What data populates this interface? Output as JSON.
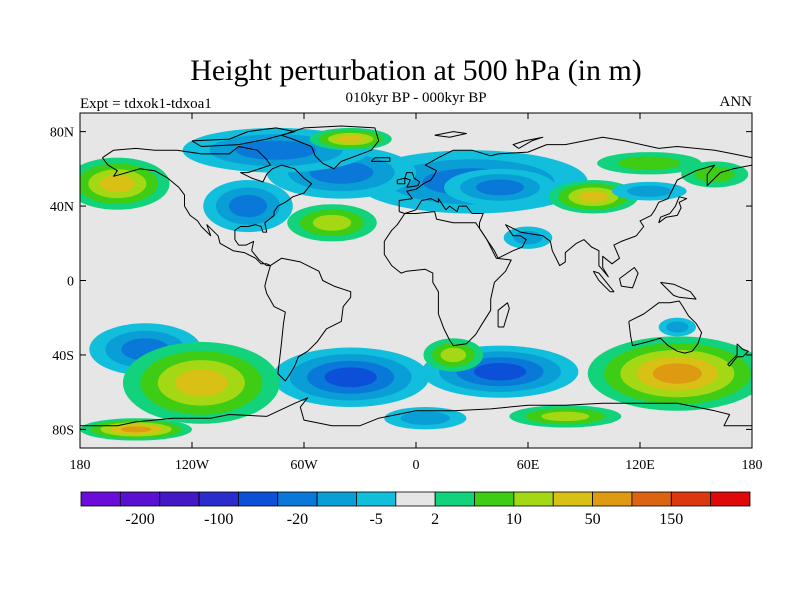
{
  "title": "Height perturbation at 500 hPa (in m)",
  "subtitle": "010kyr BP - 000kyr BP",
  "left_label": "Expt = tdxok1-tdxoa1",
  "right_label": "ANN",
  "colors": {
    "background": "#e6e6e6",
    "coast": "#000000"
  },
  "chart_data": {
    "type": "heatmap",
    "variable": "Height perturbation at 500 hPa",
    "units": "m",
    "xlim": [
      -180,
      180
    ],
    "ylim": [
      -90,
      90
    ],
    "lat_ticks": [
      {
        "value": 80,
        "label": "80N"
      },
      {
        "value": 40,
        "label": "40N"
      },
      {
        "value": 0,
        "label": "0"
      },
      {
        "value": -40,
        "label": "40S"
      },
      {
        "value": -80,
        "label": "80S"
      }
    ],
    "lon_ticks": [
      {
        "value": -180,
        "label": "180"
      },
      {
        "value": -120,
        "label": "120W"
      },
      {
        "value": -60,
        "label": "60W"
      },
      {
        "value": 0,
        "label": "0"
      },
      {
        "value": 60,
        "label": "60E"
      },
      {
        "value": 120,
        "label": "120E"
      },
      {
        "value": 180,
        "label": "180"
      }
    ],
    "colorbar": {
      "colors": [
        "#6a0dd8",
        "#5a10d0",
        "#4418c4",
        "#2a2ccc",
        "#0b50d6",
        "#0a78d8",
        "#0a9ed6",
        "#11bedc",
        "#e6e6e6",
        "#12d27c",
        "#3ecc14",
        "#a4d814",
        "#d8c014",
        "#de9a10",
        "#dc6410",
        "#dc3810",
        "#de0a0a"
      ],
      "tick_labels": [
        "-200",
        "-100",
        "-20",
        "-5",
        "2",
        "10",
        "50",
        "150"
      ]
    },
    "anomalies": [
      {
        "lon": 30,
        "lat": 53,
        "value": -14
      },
      {
        "lon": -40,
        "lat": 58,
        "value": -10
      },
      {
        "lon": -75,
        "lat": 70,
        "value": -18
      },
      {
        "lon": 60,
        "lat": 23,
        "value": -8
      },
      {
        "lon": 125,
        "lat": 63,
        "value": 6
      },
      {
        "lon": 45,
        "lat": 50,
        "value": -10
      },
      {
        "lon": -160,
        "lat": 52,
        "value": 40
      },
      {
        "lon": -45,
        "lat": 31,
        "value": 15
      },
      {
        "lon": 95,
        "lat": 45,
        "value": 20
      },
      {
        "lon": 160,
        "lat": 57,
        "value": 8
      },
      {
        "lon": 125,
        "lat": 48,
        "value": -6
      },
      {
        "lon": -90,
        "lat": 40,
        "value": -10
      },
      {
        "lon": 45,
        "lat": -49,
        "value": -35
      },
      {
        "lon": -35,
        "lat": -52,
        "value": -35
      },
      {
        "lon": -145,
        "lat": -37,
        "value": -10
      },
      {
        "lon": 140,
        "lat": -50,
        "value": 60
      },
      {
        "lon": -115,
        "lat": -55,
        "value": 25
      },
      {
        "lon": 20,
        "lat": -40,
        "value": 18
      },
      {
        "lon": 5,
        "lat": -74,
        "value": -6
      },
      {
        "lon": -150,
        "lat": -80,
        "value": 50
      },
      {
        "lon": 140,
        "lat": -25,
        "value": -5
      },
      {
        "lon": 80,
        "lat": -73,
        "value": 10
      },
      {
        "lon": -35,
        "lat": 76,
        "value": 20
      }
    ]
  }
}
